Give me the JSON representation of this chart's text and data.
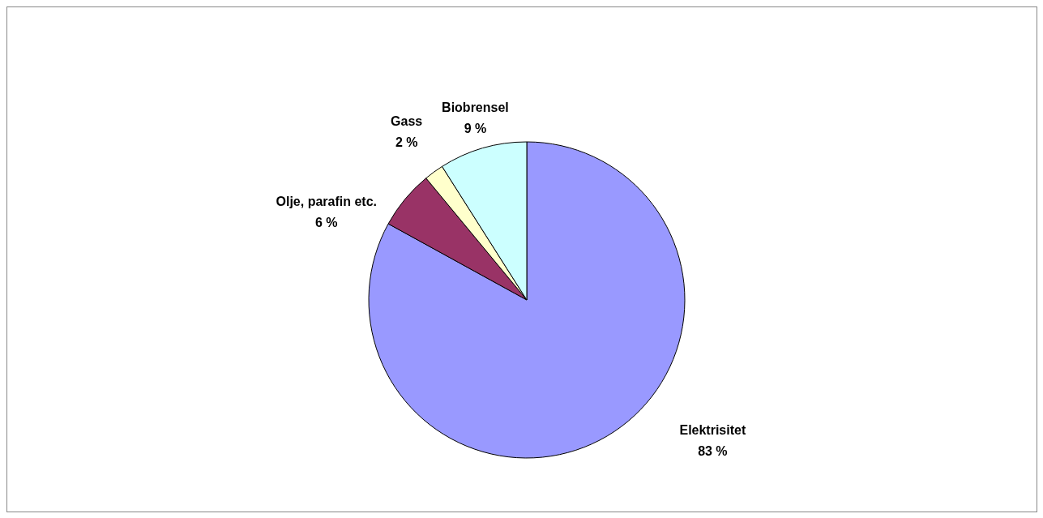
{
  "chart_data": {
    "type": "pie",
    "categories": [
      "Elektrisitet",
      "Olje, parafin etc.",
      "Gass",
      "Biobrensel"
    ],
    "values": [
      83,
      6,
      2,
      9
    ],
    "value_labels": [
      "83 %",
      "6 %",
      "2 %",
      "9 %"
    ],
    "colors": [
      "#9999ff",
      "#993366",
      "#ffffcc",
      "#ccffff"
    ]
  }
}
